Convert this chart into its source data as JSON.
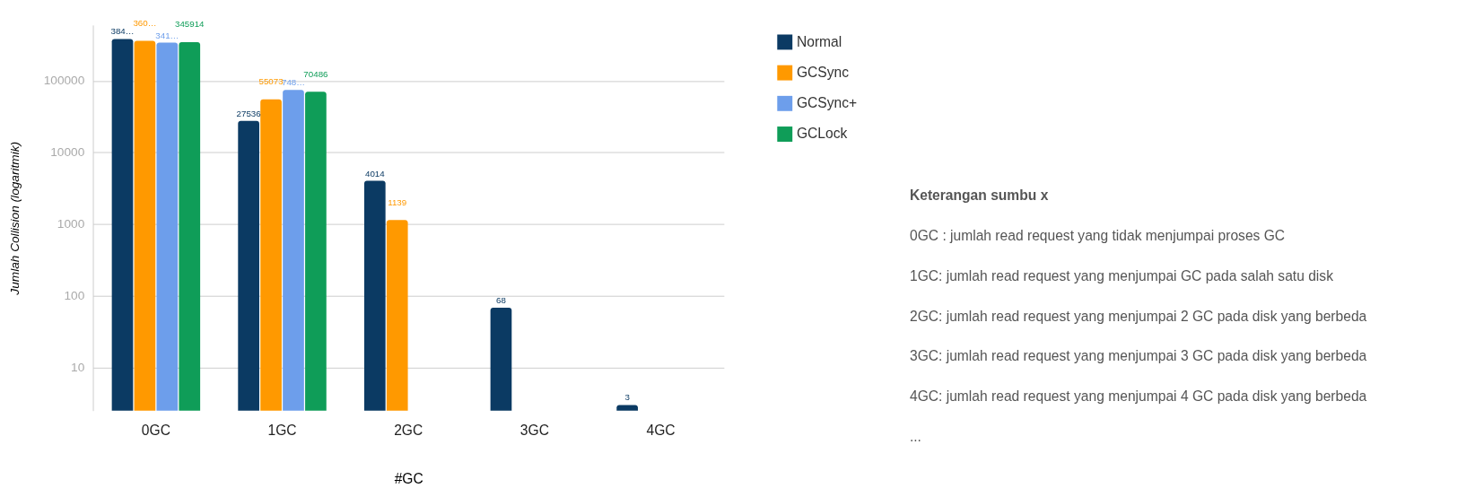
{
  "chart_data": {
    "type": "bar",
    "xlabel": "#GC",
    "ylabel": "Jumlah Collision (logaritmik)",
    "categories": [
      "0GC",
      "1GC",
      "2GC",
      "3GC",
      "4GC"
    ],
    "series": [
      {
        "name": "Normal",
        "color": "#0b3a63",
        "values": [
          384000,
          27536,
          4014,
          68,
          3
        ],
        "value_labels": [
          "384…",
          "27536",
          "4014",
          "68",
          "3"
        ]
      },
      {
        "name": "GCSync",
        "color": "#ff9900",
        "values": [
          360000,
          55073,
          1139,
          null,
          null
        ],
        "value_labels": [
          "360…",
          "55073",
          "1139",
          null,
          null
        ]
      },
      {
        "name": "GCSync+",
        "color": "#6d9eeb",
        "values": [
          341000,
          74800,
          null,
          null,
          null
        ],
        "value_labels": [
          "341…",
          "748…",
          null,
          null,
          null
        ]
      },
      {
        "name": "GCLock",
        "color": "#0f9d58",
        "values": [
          345914,
          70486,
          null,
          null,
          null
        ],
        "value_labels": [
          "345914",
          "70486",
          null,
          null,
          null
        ]
      }
    ],
    "log": true,
    "ylim": [
      2.5,
      600000
    ],
    "yticks": [
      10,
      100,
      1000,
      10000,
      100000
    ],
    "grid": "y",
    "legend": "right",
    "annotations": [
      "Keterangan sumbu x",
      "0GC : jumlah read request yang tidak menjumpai proses GC",
      "1GC: jumlah read request yang menjumpai GC pada salah satu disk",
      "2GC: jumlah read request yang menjumpai 2 GC pada disk yang berbeda",
      "3GC: jumlah read request yang menjumpai 3 GC pada disk yang berbeda",
      "4GC: jumlah read request yang menjumpai 4 GC pada disk yang berbeda",
      "..."
    ]
  }
}
